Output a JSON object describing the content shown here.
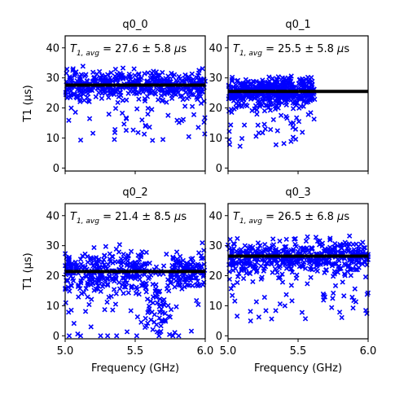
{
  "figure": {
    "ylabel": "T1 (μs)",
    "xlabel": "Frequency (GHz)"
  },
  "chart_data": [
    {
      "type": "scatter",
      "title": "q0_0",
      "annotation": "T1,avg = 27.6 ± 5.8 μs",
      "avg_label": {
        "sub": "1, avg",
        "value": "27.6",
        "err": "5.8",
        "unit": "μs"
      },
      "avg": 27.6,
      "std": 5.8,
      "x_range": [
        5.0,
        6.0
      ],
      "ylim": [
        -1,
        44
      ],
      "yticks": [
        0,
        10,
        20,
        30,
        40
      ],
      "xticks": [
        5.0,
        5.5,
        6.0
      ],
      "show_x_ticklabels": false,
      "show_ylabel": true,
      "show_xlabel": false,
      "color": "#0000ff",
      "marker": "x"
    },
    {
      "type": "scatter",
      "title": "q0_1",
      "annotation": "T1,avg = 25.5 ± 5.8 μs",
      "avg_label": {
        "sub": "1, avg",
        "value": "25.5",
        "err": "5.8",
        "unit": "μs"
      },
      "avg": 25.5,
      "std": 5.8,
      "x_range": [
        5.0,
        5.62
      ],
      "ylim": [
        -1,
        44
      ],
      "yticks": [
        0,
        10,
        20,
        30,
        40
      ],
      "xticks": [
        5.0,
        5.5,
        6.0
      ],
      "show_x_ticklabels": false,
      "show_ylabel": false,
      "show_xlabel": false,
      "color": "#0000ff",
      "marker": "x"
    },
    {
      "type": "scatter",
      "title": "q0_2",
      "annotation": "T1,avg = 21.4 ± 8.5 μs",
      "avg_label": {
        "sub": "1, avg",
        "value": "21.4",
        "err": "8.5",
        "unit": "μs"
      },
      "avg": 21.4,
      "std": 8.5,
      "x_range": [
        5.0,
        6.0
      ],
      "ylim": [
        -1,
        44
      ],
      "yticks": [
        0,
        10,
        20,
        30,
        40
      ],
      "xticks": [
        5.0,
        5.5,
        6.0
      ],
      "xtick_labels": [
        "5.0",
        "5.5",
        "6.0"
      ],
      "show_x_ticklabels": true,
      "show_ylabel": true,
      "show_xlabel": true,
      "color": "#0000ff",
      "marker": "x"
    },
    {
      "type": "scatter",
      "title": "q0_3",
      "annotation": "T1,avg = 26.5 ± 6.8 μs",
      "avg_label": {
        "sub": "1, avg",
        "value": "26.5",
        "err": "6.8",
        "unit": "μs"
      },
      "avg": 26.5,
      "std": 6.8,
      "x_range": [
        5.0,
        6.0
      ],
      "ylim": [
        -1,
        44
      ],
      "yticks": [
        0,
        10,
        20,
        30,
        40
      ],
      "xticks": [
        5.0,
        5.5,
        6.0
      ],
      "xtick_labels": [
        "5.0",
        "5.5",
        "6.0"
      ],
      "show_x_ticklabels": true,
      "show_ylabel": false,
      "show_xlabel": true,
      "color": "#0000ff",
      "marker": "x"
    }
  ]
}
